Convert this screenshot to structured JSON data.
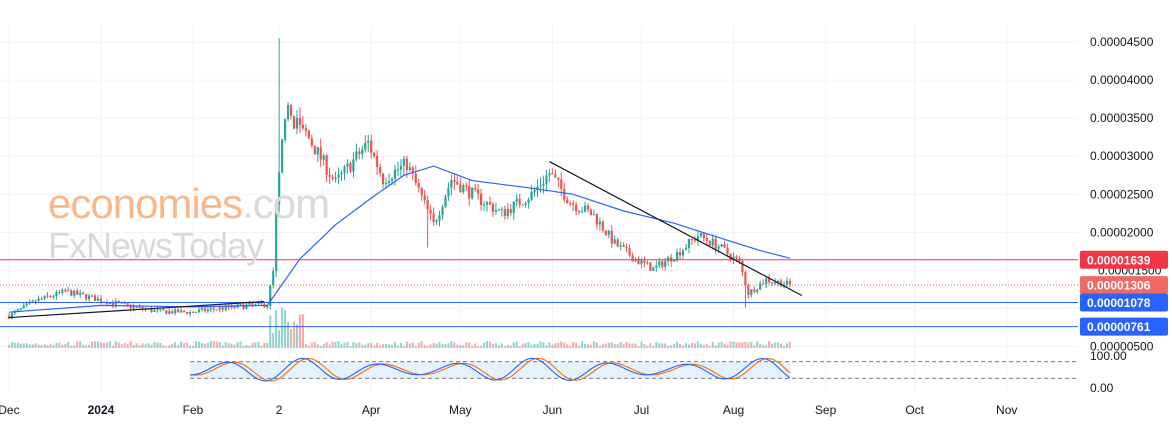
{
  "colors": {
    "up": "#26a69a",
    "down": "#ef5350",
    "ma": "#2962ff",
    "trend": "#131722",
    "grid": "#f0f3fa",
    "axis_text": "#131722",
    "red_line": "#f23645",
    "blue_line": "#2962ff",
    "dotted": "#ef5350",
    "stoch_k": "#2962ff",
    "stoch_d": "#ff6d00",
    "stoch_band": "#e3f2fd",
    "wm_a": "#f7b98c",
    "wm_b": "#d9d9d9"
  },
  "watermark": {
    "line1_a": "economies",
    "line1_b": ".com",
    "line2": "FxNewsToday"
  },
  "chart_data": [
    {
      "type": "candlestick",
      "title": "",
      "y_scale": "linear",
      "ylim": [
        4.8e-06,
        4.58e-05
      ],
      "price_ticks": [
        "0.00004500",
        "0.00004000",
        "0.00003500",
        "0.00003000",
        "0.00002500",
        "0.00002000",
        "0.00001500",
        "0.00001000",
        "0.00000500"
      ],
      "price_tick_values": [
        4.5e-05,
        4e-05,
        3.5e-05,
        3e-05,
        2.5e-05,
        2e-05,
        1.5e-05,
        1e-05,
        5e-06
      ],
      "time_ticks": [
        {
          "label": "Dec",
          "x": "2023-12-01"
        },
        {
          "label": "2024",
          "x": "2024-01-01"
        },
        {
          "label": "Feb",
          "x": "2024-02-01"
        },
        {
          "label": "2",
          "x": "2024-03-01"
        },
        {
          "label": "Apr",
          "x": "2024-04-01"
        },
        {
          "label": "May",
          "x": "2024-05-01"
        },
        {
          "label": "Jun",
          "x": "2024-06-01"
        },
        {
          "label": "Jul",
          "x": "2024-07-01"
        },
        {
          "label": "Aug",
          "x": "2024-08-01"
        },
        {
          "label": "Sep",
          "x": "2024-09-01"
        },
        {
          "label": "Oct",
          "x": "2024-10-01"
        },
        {
          "label": "Nov",
          "x": "2024-11-01"
        }
      ],
      "x_range": [
        "2023-12-01",
        "2024-11-25"
      ],
      "last_date": "2024-08-20",
      "close_path": [
        [
          "2023-12-01",
          9e-06
        ],
        [
          "2023-12-10",
          1.1e-05
        ],
        [
          "2023-12-20",
          1.22e-05
        ],
        [
          "2023-12-31",
          1.12e-05
        ],
        [
          "2024-01-10",
          1.03e-05
        ],
        [
          "2024-01-20",
          9.6e-06
        ],
        [
          "2024-01-31",
          9.5e-06
        ],
        [
          "2024-02-10",
          1e-05
        ],
        [
          "2024-02-20",
          1.04e-05
        ],
        [
          "2024-02-26",
          1.05e-05
        ],
        [
          "2024-02-28",
          1.5e-05
        ],
        [
          "2024-02-29",
          2.3e-05
        ],
        [
          "2024-03-03",
          3.6e-05
        ],
        [
          "2024-03-10",
          3.3e-05
        ],
        [
          "2024-03-20",
          2.65e-05
        ],
        [
          "2024-03-31",
          3.18e-05
        ],
        [
          "2024-04-05",
          2.7e-05
        ],
        [
          "2024-04-13",
          2.9e-05
        ],
        [
          "2024-04-22",
          2.1e-05
        ],
        [
          "2024-04-28",
          2.7e-05
        ],
        [
          "2024-05-07",
          2.45e-05
        ],
        [
          "2024-05-15",
          2.25e-05
        ],
        [
          "2024-05-25",
          2.5e-05
        ],
        [
          "2024-05-31",
          2.78e-05
        ],
        [
          "2024-06-07",
          2.4e-05
        ],
        [
          "2024-06-15",
          2.22e-05
        ],
        [
          "2024-06-22",
          1.85e-05
        ],
        [
          "2024-06-30",
          1.62e-05
        ],
        [
          "2024-07-05",
          1.52e-05
        ],
        [
          "2024-07-13",
          1.72e-05
        ],
        [
          "2024-07-20",
          1.96e-05
        ],
        [
          "2024-07-27",
          1.82e-05
        ],
        [
          "2024-08-03",
          1.6e-05
        ],
        [
          "2024-08-06",
          1.2e-05
        ],
        [
          "2024-08-12",
          1.38e-05
        ],
        [
          "2024-08-20",
          1.31e-05
        ]
      ],
      "moving_average": [
        [
          "2023-12-01",
          9.5e-06
        ],
        [
          "2024-01-01",
          1.04e-05
        ],
        [
          "2024-02-01",
          1.02e-05
        ],
        [
          "2024-02-26",
          1.04e-05
        ],
        [
          "2024-03-08",
          1.65e-05
        ],
        [
          "2024-03-20",
          2.1e-05
        ],
        [
          "2024-04-01",
          2.45e-05
        ],
        [
          "2024-04-12",
          2.75e-05
        ],
        [
          "2024-04-22",
          2.87e-05
        ],
        [
          "2024-05-05",
          2.68e-05
        ],
        [
          "2024-05-25",
          2.58e-05
        ],
        [
          "2024-06-08",
          2.5e-05
        ],
        [
          "2024-06-25",
          2.28e-05
        ],
        [
          "2024-07-12",
          2.12e-05
        ],
        [
          "2024-07-28",
          1.92e-05
        ],
        [
          "2024-08-10",
          1.76e-05
        ],
        [
          "2024-08-20",
          1.66e-05
        ]
      ],
      "trendlines": [
        {
          "from": [
            "2023-12-01",
            8.8e-06
          ],
          "to": [
            "2024-02-25",
            1.09e-05
          ]
        },
        {
          "from": [
            "2024-05-31",
            2.93e-05
          ],
          "to": [
            "2024-08-24",
            1.17e-05
          ]
        }
      ],
      "horizontal_levels": [
        {
          "value": 1.639e-05,
          "label": "0.00001639",
          "style": "red"
        },
        {
          "value": 1.306e-05,
          "label": "0.00001306",
          "style": "dotted"
        },
        {
          "value": 1.078e-05,
          "label": "0.00001078",
          "style": "blue"
        },
        {
          "value": 7.61e-06,
          "label": "0.00000761",
          "style": "blue"
        }
      ],
      "partial_tick_label": "0.00001500"
    },
    {
      "type": "line",
      "name": "stochastic",
      "ylim": [
        0,
        100
      ],
      "ticks": [
        "100.00",
        "0.00"
      ],
      "band": [
        20,
        80
      ],
      "x_range": [
        "2024-01-31",
        "2024-08-20"
      ]
    }
  ]
}
